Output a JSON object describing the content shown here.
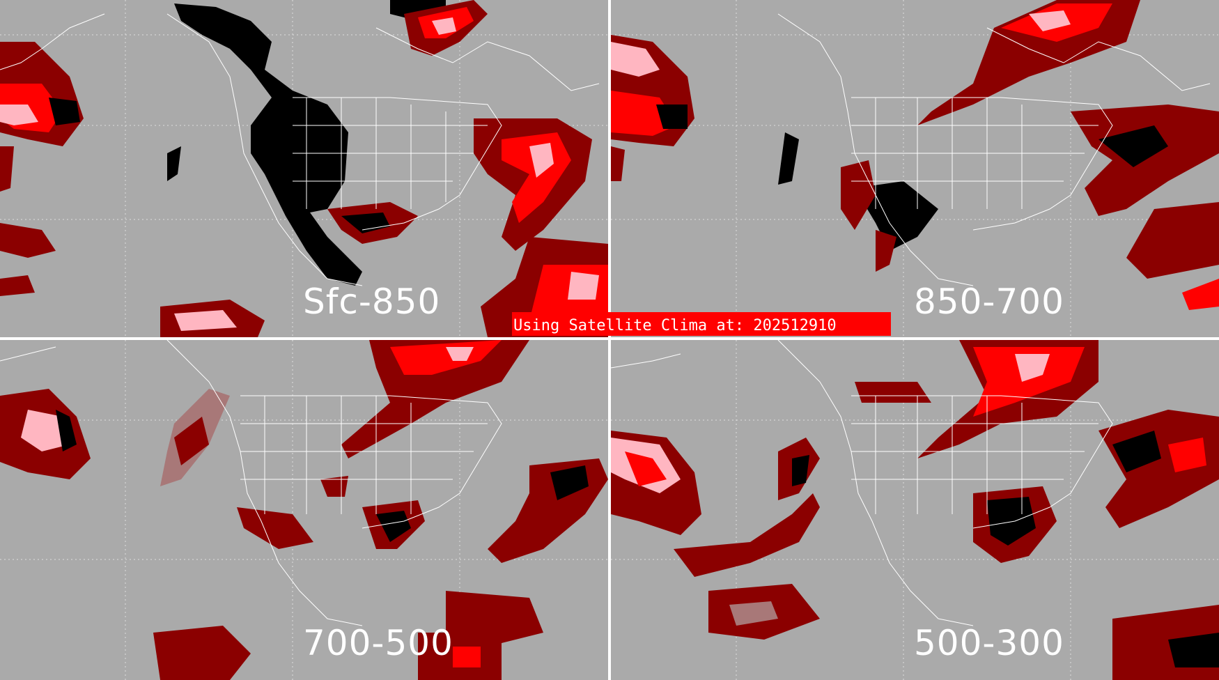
{
  "banner": {
    "text": "Using Satellite Clima at: 202512910"
  },
  "panels": [
    {
      "id": "sfc-850",
      "label": "Sfc-850"
    },
    {
      "id": "850-700",
      "label": "850-700"
    },
    {
      "id": "700-500",
      "label": "700-500"
    },
    {
      "id": "500-300",
      "label": "500-300"
    }
  ],
  "colors": {
    "background": "#aaaaaa",
    "divider": "#ffffff",
    "coastline": "#ffffff",
    "graticule": "#dddddd",
    "dark_red": "#8b0000",
    "red": "#ff0000",
    "pink": "#ffb6c1",
    "grey_red": "#a87878",
    "black": "#000000",
    "banner": "#ff0000"
  }
}
